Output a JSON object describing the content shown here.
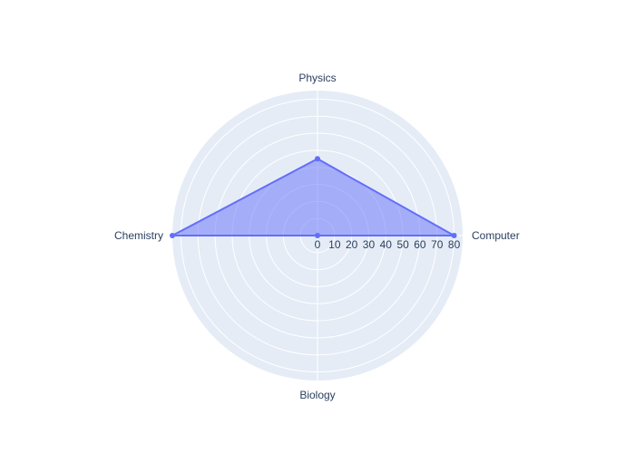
{
  "chart_data": {
    "type": "radar",
    "categories": [
      "Computer",
      "Physics",
      "Chemistry",
      "Biology"
    ],
    "series": [
      {
        "values": [
          80,
          45,
          85,
          0
        ],
        "color": "#636efa",
        "fill_color": "#636efa",
        "fill": "toself"
      }
    ],
    "radial_range": [
      0,
      85
    ],
    "radial_ticks": [
      0,
      10,
      20,
      30,
      40,
      50,
      60,
      70,
      80
    ],
    "grid": true,
    "background_color": "#e5ecf6",
    "grid_color": "#ffffff"
  }
}
